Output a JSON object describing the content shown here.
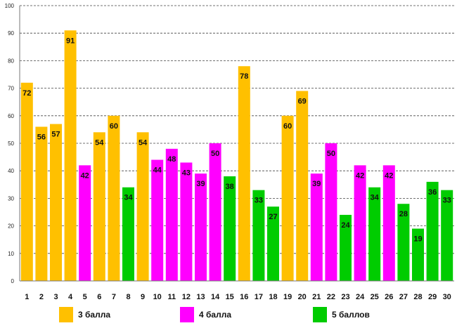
{
  "chart_data": {
    "type": "bar",
    "title": "",
    "xlabel": "",
    "ylabel": "",
    "ylim": [
      0,
      100
    ],
    "ytick_step": 10,
    "grid": true,
    "categories": [
      "1",
      "2",
      "3",
      "4",
      "5",
      "6",
      "7",
      "8",
      "9",
      "10",
      "11",
      "12",
      "13",
      "14",
      "15",
      "16",
      "17",
      "18",
      "19",
      "20",
      "21",
      "22",
      "23",
      "24",
      "25",
      "26",
      "27",
      "28",
      "29",
      "30"
    ],
    "values": [
      72,
      56,
      57,
      91,
      42,
      54,
      60,
      34,
      54,
      44,
      48,
      43,
      39,
      50,
      38,
      78,
      33,
      27,
      60,
      69,
      39,
      50,
      24,
      42,
      34,
      42,
      28,
      19,
      36,
      33
    ],
    "groups": [
      3,
      3,
      3,
      3,
      4,
      3,
      3,
      5,
      3,
      4,
      4,
      4,
      4,
      4,
      5,
      3,
      5,
      5,
      3,
      3,
      4,
      4,
      5,
      4,
      5,
      4,
      5,
      5,
      5,
      5
    ],
    "legend": [
      {
        "group": 3,
        "label": "3 балла",
        "color": "#FFC000"
      },
      {
        "group": 4,
        "label": "4 балла",
        "color": "#FF00FF"
      },
      {
        "group": 5,
        "label": "5 баллов",
        "color": "#00CC00"
      }
    ],
    "legend_position": "bottom"
  }
}
